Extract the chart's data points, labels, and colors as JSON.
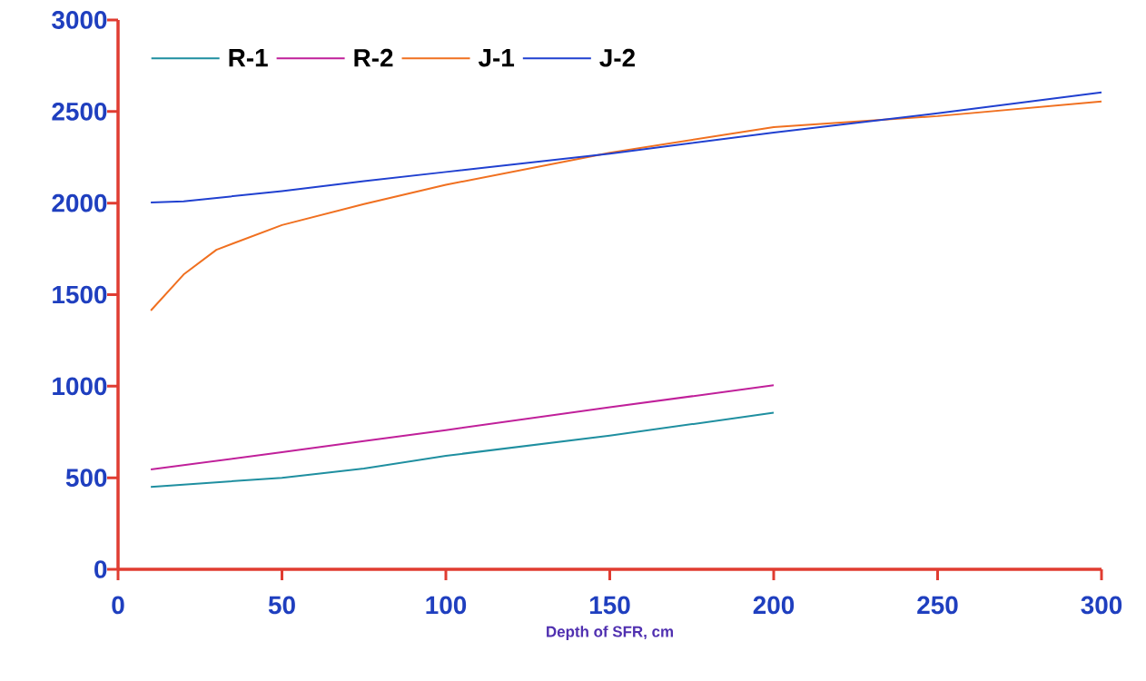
{
  "chart_data": {
    "type": "line",
    "xlabel": "Depth of SFR, cm",
    "x": [
      10,
      50,
      75,
      100,
      150,
      200
    ],
    "series": [
      {
        "name": "R-1",
        "color": "#1f8fa0",
        "values": [
          450,
          500,
          550,
          620,
          730,
          855
        ]
      },
      {
        "name": "R-2",
        "color": "#c0209a",
        "values": [
          545,
          640,
          700,
          760,
          885,
          1005
        ]
      },
      {
        "name": "J-1",
        "color": "#f07020",
        "x": [
          10,
          20,
          30,
          50,
          75,
          100,
          150,
          200,
          250,
          300
        ],
        "values": [
          1413,
          1610,
          1745,
          1880,
          1995,
          2100,
          2275,
          2415,
          2475,
          2555
        ]
      },
      {
        "name": "J-2",
        "color": "#2040d0",
        "x": [
          10,
          20,
          50,
          75,
          100,
          150,
          200,
          250,
          300
        ],
        "values": [
          2003,
          2010,
          2065,
          2120,
          2170,
          2270,
          2385,
          2490,
          2605
        ]
      }
    ],
    "xlim": [
      0,
      300
    ],
    "ylim": [
      0,
      3000
    ],
    "xticks": [
      0,
      50,
      100,
      150,
      200,
      250,
      300
    ],
    "yticks": [
      0,
      500,
      1000,
      1500,
      2000,
      2500,
      3000
    ],
    "legend": "top",
    "marker": "none",
    "line_style": "solid"
  }
}
